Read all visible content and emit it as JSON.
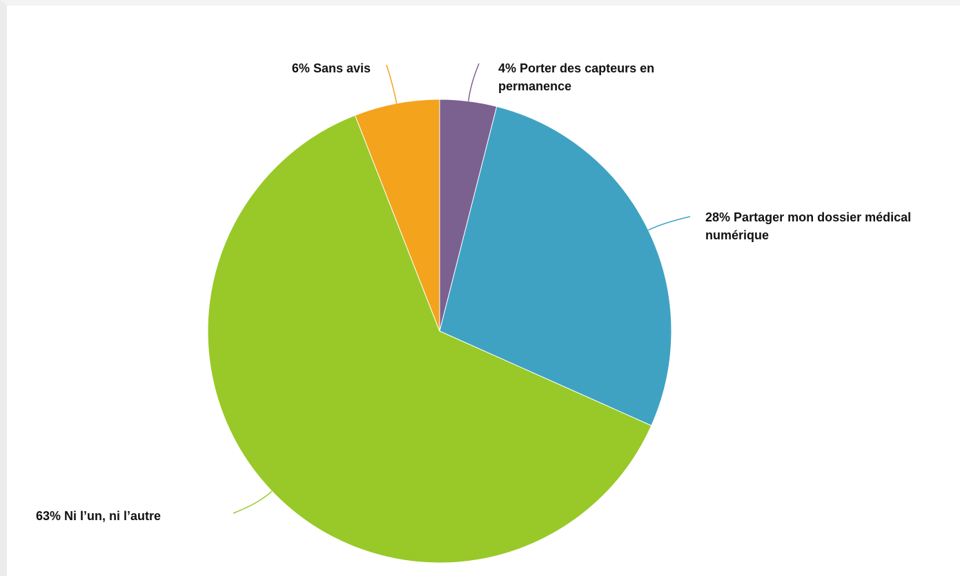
{
  "chart_data": {
    "type": "pie",
    "categories": [
      "Porter des capteurs en permanence",
      "Partager mon dossier médical numérique",
      "Ni l’un, ni l’autre",
      "Sans avis"
    ],
    "values": [
      4,
      28,
      63,
      6
    ],
    "value_labels": [
      "4%",
      "28%",
      "63%",
      "6%"
    ],
    "colors": [
      "#7b6190",
      "#3fa2c3",
      "#98c928",
      "#f4a31c"
    ]
  }
}
